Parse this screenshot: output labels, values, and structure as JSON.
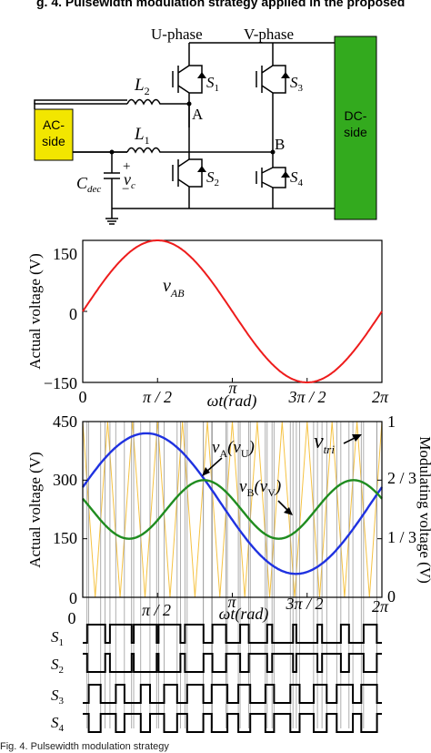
{
  "header": {
    "title_partial": "g. 4. Pulsewidth modulation strategy applied in the proposed"
  },
  "circuit": {
    "u_phase": "U-phase",
    "v_phase": "V-phase",
    "ac_side": [
      "AC-",
      "side"
    ],
    "dc_side": [
      "DC-",
      "side"
    ],
    "L2": {
      "sym": "L",
      "sub": "2"
    },
    "L1": {
      "sym": "L",
      "sub": "1"
    },
    "node_a": "A",
    "node_b": "B",
    "S1": {
      "sym": "S",
      "sub": "1"
    },
    "S2": {
      "sym": "S",
      "sub": "2"
    },
    "S3": {
      "sym": "S",
      "sub": "3"
    },
    "S4": {
      "sym": "S",
      "sub": "4"
    },
    "cdec": {
      "sym": "C",
      "sub": "dec"
    },
    "vc": {
      "sym": "v",
      "sub": "c"
    },
    "plus": "+",
    "minus": "−",
    "colors": {
      "ac_box": "#f2e600",
      "dc_box": "#33aa1e"
    }
  },
  "chart_data": [
    {
      "type": "line",
      "title": "",
      "xlabel": "ωt(rad)",
      "ylabel": "Actual voltage (V)",
      "ylim": [
        -150,
        150
      ],
      "xlim": [
        0,
        6.2832
      ],
      "ytick_labels": [
        "150",
        "0",
        "−150"
      ],
      "xtick_labels": [
        "0",
        "π / 2",
        "π",
        "3π / 2",
        "2π"
      ],
      "series": [
        {
          "name": "v_AB",
          "label_sym": "v",
          "label_sub": "AB",
          "color": "#ee1c1c",
          "function": "150·sin(ωt)"
        }
      ]
    },
    {
      "type": "line",
      "title": "",
      "xlabel": "ωt(rad)",
      "ylabel": "Actual voltage (V)",
      "ylabel_right": "Modulating voltage (V)",
      "ylim": [
        0,
        450
      ],
      "ylim_right": [
        0,
        1
      ],
      "xlim": [
        0,
        6.2832
      ],
      "ytick_labels": [
        "0",
        "150",
        "300",
        "450"
      ],
      "ytick_right_labels": [
        "0",
        "1 / 3",
        "2 / 3",
        "1"
      ],
      "xtick_labels": [
        "0",
        "π / 2",
        "π",
        "3π / 2",
        "2π"
      ],
      "carrier": {
        "name": "v_tri",
        "label_sym": "v",
        "label_sub": "tri",
        "color": "#f5c242",
        "periods": 12
      },
      "series": [
        {
          "name": "v_A(v_U)",
          "label_parts": [
            "v",
            "A",
            "(v",
            "U",
            ")"
          ],
          "color": "#1f32e0",
          "function": "240+180·sin(ωt+0.235)"
        },
        {
          "name": "v_B(v_V)",
          "label_parts": [
            "v",
            "B",
            "(v",
            "V",
            ")"
          ],
          "color": "#1f8c1f",
          "function": "225+75·sin(2ωt+2.765)"
        }
      ],
      "switch_rows": [
        {
          "sym": "S",
          "sub": "1"
        },
        {
          "sym": "S",
          "sub": "2"
        },
        {
          "sym": "S",
          "sub": "3"
        },
        {
          "sym": "S",
          "sub": "4"
        }
      ]
    }
  ],
  "caption": "Fig. 4.   Pulsewidth modulation strategy"
}
